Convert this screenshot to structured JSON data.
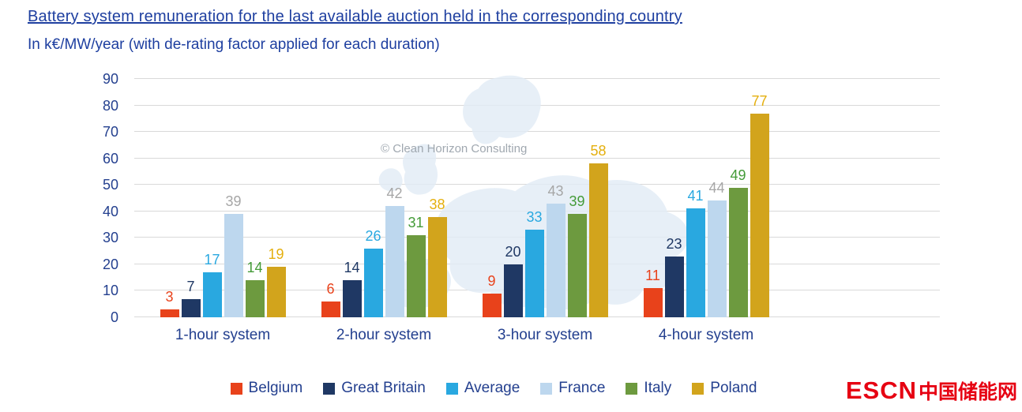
{
  "header": {
    "title": "Battery system remuneration for the last available auction held in the corresponding country",
    "subtitle": "In k€/MW/year (with de-rating factor applied for each duration)"
  },
  "watermark_text": "© Clean Horizon Consulting",
  "logo": {
    "latin": "ESCN",
    "cjk": "中国储能网"
  },
  "colors": {
    "title_text": "#1E3FA0",
    "axis_text": "#24408F",
    "gridline": "#D9D9D9",
    "logo_red": "#E60012",
    "watermark_text": "#A0A8B0",
    "map_fill": "#E2ECF6"
  },
  "chart_data": {
    "type": "bar",
    "title": "Battery system remuneration for the last available auction held in the corresponding country",
    "subtitle": "In k€/MW/year (with de-rating factor applied for each duration)",
    "categories": [
      "1-hour system",
      "2-hour system",
      "3-hour system",
      "4-hour system"
    ],
    "series": [
      {
        "name": "Belgium",
        "color": "#E8421B",
        "label_color": "#E8421B",
        "values": [
          3,
          6,
          9,
          11
        ]
      },
      {
        "name": "Great Britain",
        "color": "#1F3864",
        "label_color": "#1F3864",
        "values": [
          7,
          14,
          20,
          23
        ]
      },
      {
        "name": "Average",
        "color": "#29A8E0",
        "label_color": "#29A8E0",
        "values": [
          17,
          26,
          33,
          41
        ]
      },
      {
        "name": "France",
        "color": "#BDD7EE",
        "label_color": "#A6A6A6",
        "values": [
          39,
          42,
          43,
          44
        ]
      },
      {
        "name": "Italy",
        "color": "#6D9A3F",
        "label_color": "#449B38",
        "values": [
          14,
          31,
          39,
          49
        ]
      },
      {
        "name": "Poland",
        "color": "#D2A41C",
        "label_color": "#E4AF0D",
        "values": [
          19,
          38,
          58,
          77
        ]
      }
    ],
    "ylim": [
      0,
      90
    ],
    "ytick_step": 10,
    "xlabel": "",
    "ylabel": "",
    "grid": true,
    "legend_position": "bottom",
    "data_labels": true
  }
}
